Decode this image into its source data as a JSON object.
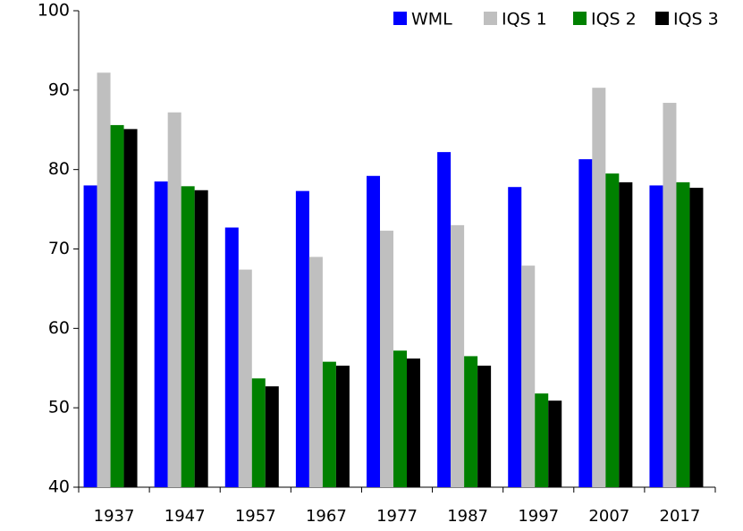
{
  "chart_data": {
    "type": "bar",
    "categories": [
      "1937",
      "1947",
      "1957",
      "1967",
      "1977",
      "1987",
      "1997",
      "2007",
      "2017"
    ],
    "series": [
      {
        "name": "WML",
        "color": "#0000ff",
        "values": [
          78,
          78.5,
          72.7,
          77.3,
          79.2,
          82.2,
          77.8,
          81.3,
          78
        ]
      },
      {
        "name": "IQS 1",
        "color": "#bfbfbf",
        "values": [
          92.2,
          87.2,
          67.4,
          69,
          72.3,
          73,
          67.9,
          90.3,
          88.4
        ]
      },
      {
        "name": "IQS 2",
        "color": "#008000",
        "values": [
          85.6,
          77.9,
          53.7,
          55.8,
          57.2,
          56.5,
          51.8,
          79.5,
          78.4
        ]
      },
      {
        "name": "IQS 3",
        "color": "#000000",
        "values": [
          85.1,
          77.4,
          52.7,
          55.3,
          56.2,
          55.3,
          50.9,
          78.4,
          77.7
        ]
      }
    ],
    "ylim": [
      40,
      100
    ],
    "yticks": [
      40,
      50,
      60,
      70,
      80,
      90,
      100
    ],
    "grid": false,
    "legend": "top-right"
  }
}
